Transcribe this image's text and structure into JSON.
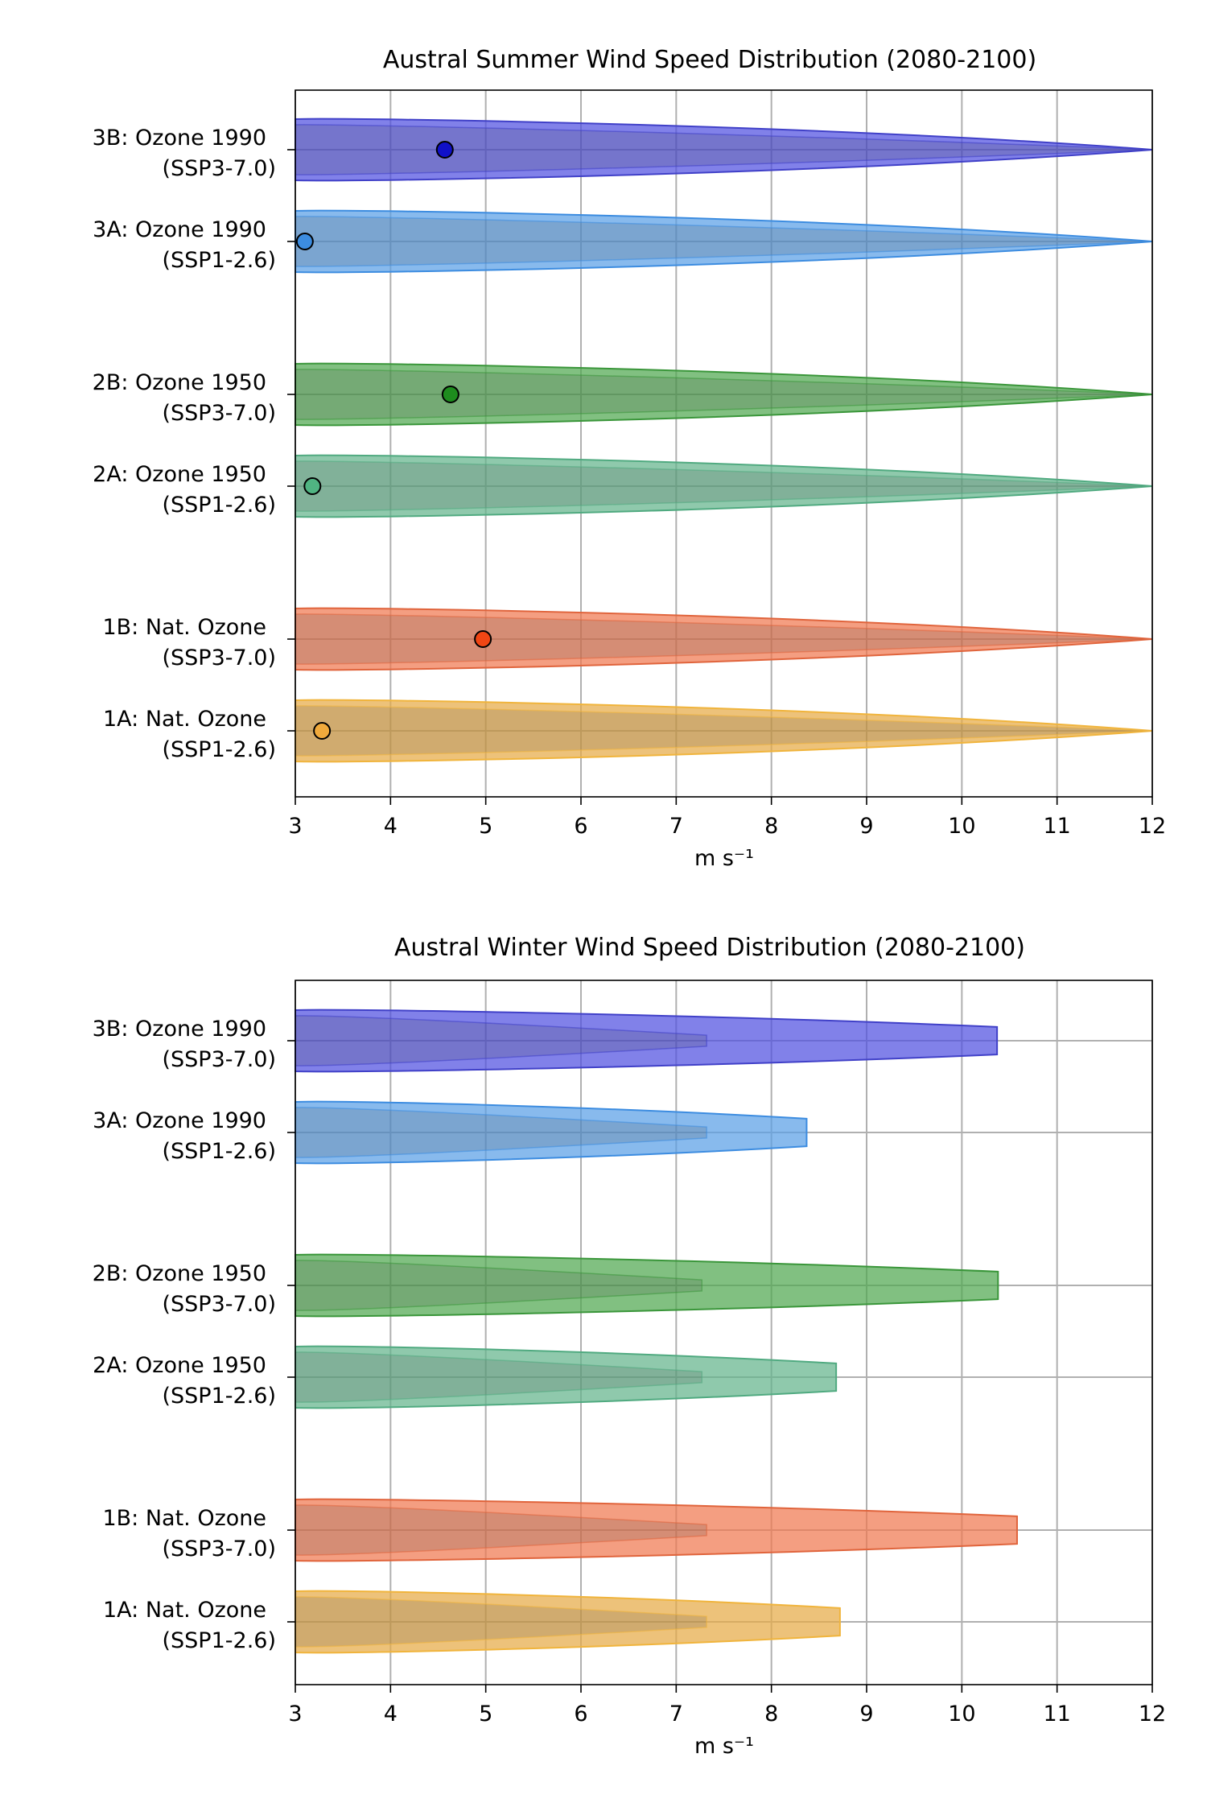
{
  "chart_data": [
    {
      "type": "violin",
      "title": "Austral Summer Wind Speed Distribution (2080-2100)",
      "xlabel": "m s⁻¹",
      "xlim": [
        3,
        12
      ],
      "xticks": [
        3,
        4,
        5,
        6,
        7,
        8,
        9,
        10,
        11,
        12
      ],
      "grid": true,
      "series": [
        {
          "label_line1": "3B: Ozone 1990",
          "label_line2": "(SSP3-7.0)",
          "color": "#5050e0",
          "edge": "#4040c8",
          "inner_end": 12.0,
          "outer_end": 12.0,
          "mean": 4.57,
          "marker_color": "#1010c8"
        },
        {
          "label_line1": "3A: Ozone 1990",
          "label_line2": "(SSP1-2.6)",
          "color": "#5aa0e6",
          "edge": "#3c8ce0",
          "inner_end": 12.0,
          "outer_end": 12.0,
          "mean": 3.1,
          "marker_color": "#3c8ce0"
        },
        {
          "label_line1": "2B: Ozone 1950",
          "label_line2": "(SSP3-7.0)",
          "color": "#50a850",
          "edge": "#3a963a",
          "inner_end": 12.0,
          "outer_end": 12.0,
          "mean": 4.63,
          "marker_color": "#1e8c1e"
        },
        {
          "label_line1": "2A: Ozone 1950",
          "label_line2": "(SSP1-2.6)",
          "color": "#64b48c",
          "edge": "#50aa80",
          "inner_end": 12.0,
          "outer_end": 12.0,
          "mean": 3.18,
          "marker_color": "#50b482"
        },
        {
          "label_line1": "1B: Nat. Ozone",
          "label_line2": "(SSP3-7.0)",
          "color": "#f07850",
          "edge": "#e0643c",
          "inner_end": 12.0,
          "outer_end": 12.0,
          "mean": 4.97,
          "marker_color": "#f04614"
        },
        {
          "label_line1": "1A: Nat. Ozone",
          "label_line2": "(SSP1-2.6)",
          "color": "#e6aa46",
          "edge": "#f0b43c",
          "inner_end": 12.0,
          "outer_end": 12.0,
          "mean": 3.28,
          "marker_color": "#f0aa3c"
        }
      ]
    },
    {
      "type": "violin",
      "title": "Austral Winter Wind Speed Distribution (2080-2100)",
      "xlabel": "m s⁻¹",
      "xlim": [
        3,
        12
      ],
      "xticks": [
        3,
        4,
        5,
        6,
        7,
        8,
        9,
        10,
        11,
        12
      ],
      "grid": true,
      "series": [
        {
          "label_line1": "3B: Ozone 1990",
          "label_line2": "(SSP3-7.0)",
          "color": "#5050e0",
          "edge": "#4040c8",
          "inner_end": 7.32,
          "outer_end": 10.37
        },
        {
          "label_line1": "3A: Ozone 1990",
          "label_line2": "(SSP1-2.6)",
          "color": "#5aa0e6",
          "edge": "#3c8ce0",
          "inner_end": 7.32,
          "outer_end": 8.37
        },
        {
          "label_line1": "2B: Ozone 1950",
          "label_line2": "(SSP3-7.0)",
          "color": "#50a850",
          "edge": "#3a963a",
          "inner_end": 7.27,
          "outer_end": 10.38
        },
        {
          "label_line1": "2A: Ozone 1950",
          "label_line2": "(SSP1-2.6)",
          "color": "#64b48c",
          "edge": "#50aa80",
          "inner_end": 7.27,
          "outer_end": 8.68
        },
        {
          "label_line1": "1B: Nat. Ozone",
          "label_line2": "(SSP3-7.0)",
          "color": "#f07850",
          "edge": "#e0643c",
          "inner_end": 7.32,
          "outer_end": 10.58
        },
        {
          "label_line1": "1A: Nat. Ozone",
          "label_line2": "(SSP1-2.6)",
          "color": "#e6aa46",
          "edge": "#f0b43c",
          "inner_end": 7.32,
          "outer_end": 8.72
        }
      ]
    }
  ]
}
